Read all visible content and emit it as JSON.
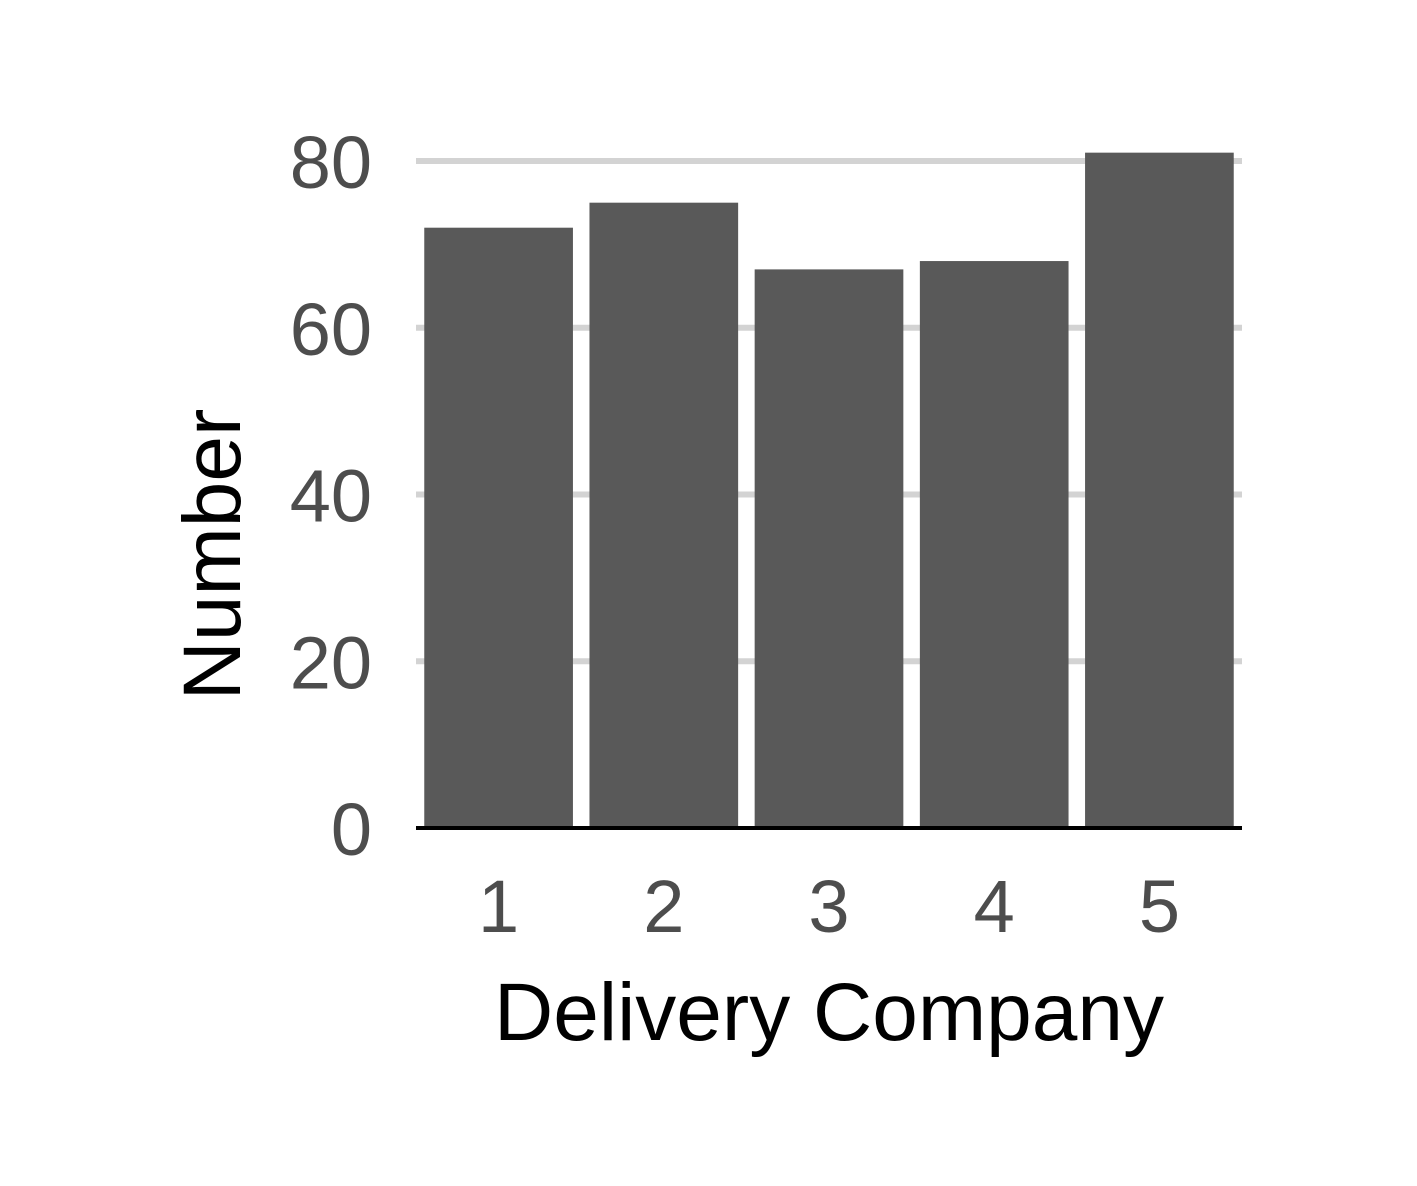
{
  "chart_data": {
    "type": "bar",
    "title": "",
    "xlabel": "Delivery Company",
    "ylabel": "Number",
    "categories": [
      "1",
      "2",
      "3",
      "4",
      "5"
    ],
    "values": [
      72,
      75,
      67,
      68,
      81
    ],
    "ylim": [
      0,
      80
    ],
    "yticks": [
      "0",
      "20",
      "40",
      "60",
      "80"
    ],
    "grid": "horizontal major gridlines",
    "legend": "none",
    "colors": {
      "bar": "#595959",
      "grid": "#d3d3d3",
      "tick_text": "#4d4d4d",
      "axis_line": "#000000",
      "axis_title": "#000000"
    }
  }
}
